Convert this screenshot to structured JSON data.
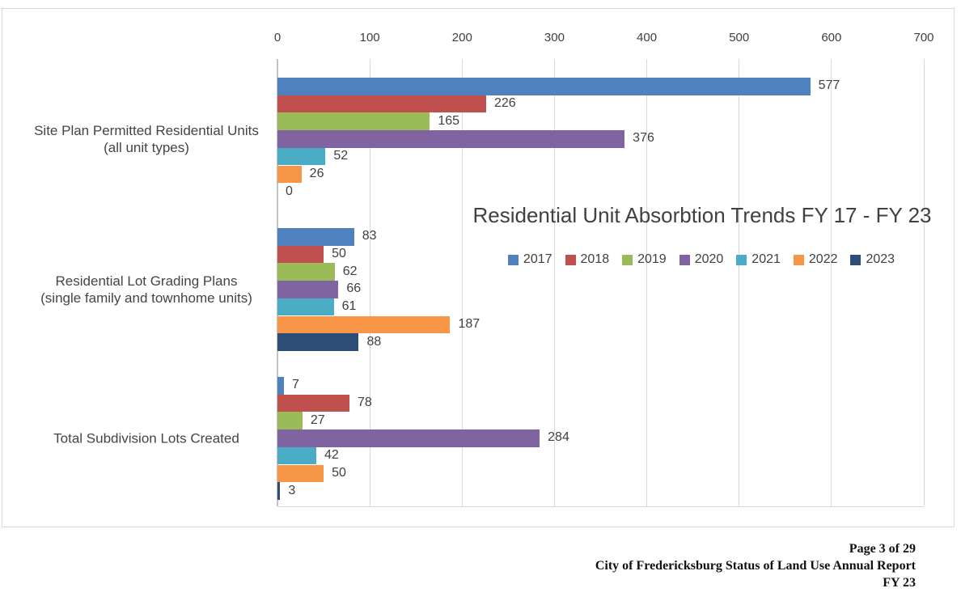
{
  "chart_data": {
    "type": "bar",
    "orientation": "horizontal",
    "title": "Residential Unit Absorbtion Trends FY 17 - FY 23",
    "x_axis": {
      "position": "top",
      "min": 0,
      "max": 700,
      "tick_step": 100,
      "ticks": [
        0,
        100,
        200,
        300,
        400,
        500,
        600,
        700
      ]
    },
    "grid": true,
    "legend_position": "center-right",
    "value_labels": true,
    "categories": [
      "Site Plan Permitted Residential Units\n(all unit types)",
      "Residential Lot Grading Plans\n(single family and townhome units)",
      "Total Subdivision  Lots Created"
    ],
    "series": [
      {
        "name": "2017",
        "color": "#4E81BD",
        "values": [
          577,
          83,
          7
        ]
      },
      {
        "name": "2018",
        "color": "#C0504D",
        "values": [
          226,
          50,
          78
        ]
      },
      {
        "name": "2019",
        "color": "#9BBB59",
        "values": [
          165,
          62,
          27
        ]
      },
      {
        "name": "2020",
        "color": "#8064A2",
        "values": [
          376,
          66,
          284
        ]
      },
      {
        "name": "2021",
        "color": "#4BACC6",
        "values": [
          52,
          61,
          42
        ]
      },
      {
        "name": "2022",
        "color": "#F79646",
        "values": [
          26,
          187,
          50
        ]
      },
      {
        "name": "2023",
        "color": "#2C4D75",
        "values": [
          0,
          88,
          3
        ]
      }
    ],
    "colors": {
      "gridline": "#D9D9D9",
      "axis_text": "#404040",
      "title_text": "#404040",
      "frame_border": "#D9D9D9"
    }
  },
  "footer": {
    "page_number": "Page 3 of 29",
    "report_title": "City of Fredericksburg Status of Land Use Annual Report",
    "fiscal_year": "FY 23"
  }
}
